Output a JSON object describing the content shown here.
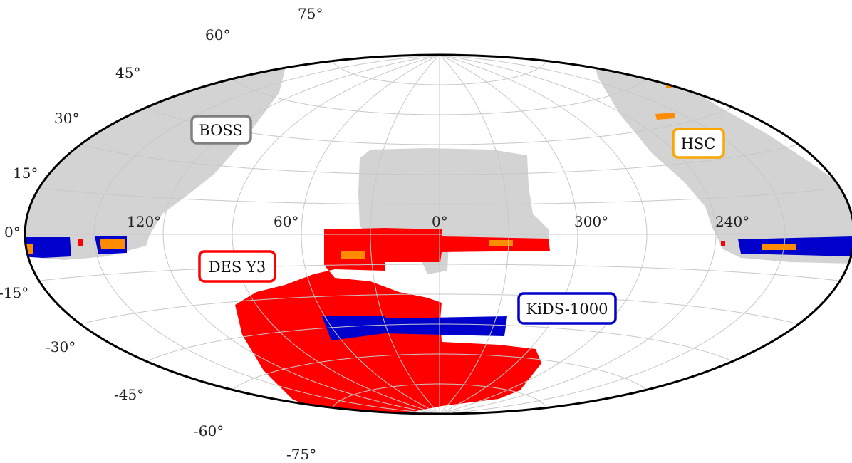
{
  "map": {
    "projection": "Aitoff",
    "graticule_color": "#c8c8c8",
    "outline_color": "#000000",
    "lat_labels": [
      "75°",
      "60°",
      "45°",
      "30°",
      "15°",
      "0°",
      "-15°",
      "-30°",
      "-45°",
      "-60°",
      "-75°"
    ],
    "lon_labels": [
      "120°",
      "60°",
      "0°",
      "300°",
      "240°"
    ]
  },
  "surveys": [
    {
      "name": "BOSS",
      "color": "#d3d3d3",
      "box_color": "#808080"
    },
    {
      "name": "HSC",
      "color": "#ff8c00",
      "box_color": "#ffa500"
    },
    {
      "name": "DES Y3",
      "color": "#ff0000",
      "box_color": "#ff0000"
    },
    {
      "name": "KiDS-1000",
      "color": "#0000cc",
      "box_color": "#0000cc"
    }
  ]
}
